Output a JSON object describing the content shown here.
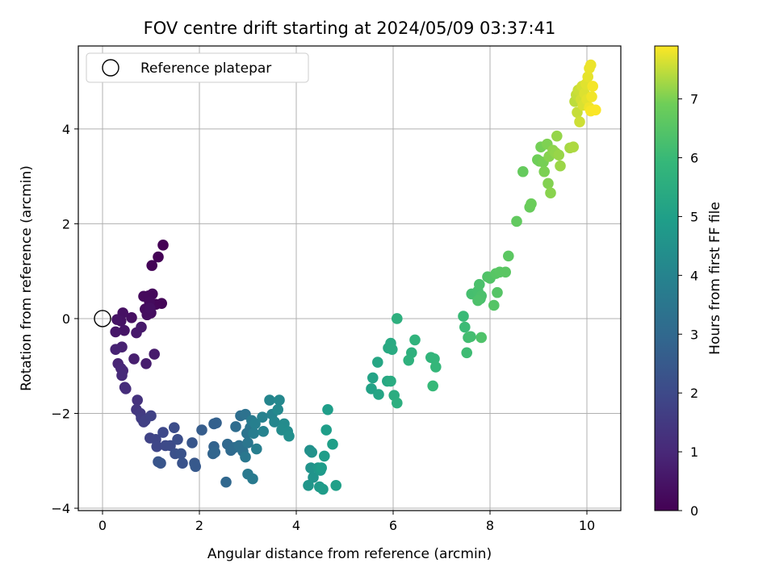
{
  "chart_data": {
    "type": "scatter",
    "title": "FOV centre drift starting at 2024/05/09 03:37:41",
    "xlabel": "Angular distance from reference (arcmin)",
    "ylabel": "Rotation from reference (arcmin)",
    "xlim": [
      -0.5,
      10.7
    ],
    "ylim": [
      -4.05,
      5.75
    ],
    "xticks": [
      0,
      2,
      4,
      6,
      8,
      10
    ],
    "yticks": [
      -4,
      -2,
      0,
      2,
      4
    ],
    "xtick_labels": [
      "0",
      "2",
      "4",
      "6",
      "8",
      "10"
    ],
    "ytick_labels": [
      "−4",
      "−2",
      "0",
      "2",
      "4"
    ],
    "grid": true,
    "legend": {
      "placement": "top-left",
      "entries": [
        {
          "label": "Reference platepar",
          "marker": "hollow-circle"
        }
      ]
    },
    "reference_point": {
      "x": 0,
      "y": 0
    },
    "colorbar": {
      "label": "Hours from first FF file",
      "colormap": "viridis",
      "range": [
        0,
        7.9
      ],
      "ticks": [
        0,
        1,
        2,
        3,
        4,
        5,
        6,
        7
      ],
      "tick_labels": [
        "0",
        "1",
        "2",
        "3",
        "4",
        "5",
        "6",
        "7"
      ]
    },
    "points": [
      {
        "x": 1.25,
        "y": 1.55,
        "c": 0.02
      },
      {
        "x": 1.15,
        "y": 1.3,
        "c": 0.05
      },
      {
        "x": 1.02,
        "y": 1.12,
        "c": 0.08
      },
      {
        "x": 1.22,
        "y": 0.32,
        "c": 0.12
      },
      {
        "x": 1.1,
        "y": 0.3,
        "c": 0.15
      },
      {
        "x": 1.03,
        "y": 0.52,
        "c": 0.18
      },
      {
        "x": 0.95,
        "y": 0.48,
        "c": 0.2
      },
      {
        "x": 0.85,
        "y": 0.47,
        "c": 0.22
      },
      {
        "x": 0.97,
        "y": 0.35,
        "c": 0.25
      },
      {
        "x": 0.88,
        "y": 0.2,
        "c": 0.28
      },
      {
        "x": 1.0,
        "y": 0.12,
        "c": 0.3
      },
      {
        "x": 0.92,
        "y": 0.08,
        "c": 0.33
      },
      {
        "x": 0.98,
        "y": 0.22,
        "c": 0.35
      },
      {
        "x": 0.6,
        "y": 0.02,
        "c": 0.38
      },
      {
        "x": 0.42,
        "y": 0.12,
        "c": 0.4
      },
      {
        "x": 0.38,
        "y": -0.05,
        "c": 0.45
      },
      {
        "x": 0.3,
        "y": -0.02,
        "c": 0.48
      },
      {
        "x": 0.45,
        "y": -0.25,
        "c": 0.5
      },
      {
        "x": 0.27,
        "y": -0.28,
        "c": 0.55
      },
      {
        "x": 0.8,
        "y": -0.18,
        "c": 0.6
      },
      {
        "x": 0.7,
        "y": -0.3,
        "c": 0.62
      },
      {
        "x": 1.07,
        "y": -0.75,
        "c": 0.65
      },
      {
        "x": 0.9,
        "y": -0.95,
        "c": 0.7
      },
      {
        "x": 0.65,
        "y": -0.85,
        "c": 0.75
      },
      {
        "x": 0.4,
        "y": -0.6,
        "c": 0.8
      },
      {
        "x": 0.27,
        "y": -0.65,
        "c": 0.85
      },
      {
        "x": 0.32,
        "y": -0.95,
        "c": 0.9
      },
      {
        "x": 0.38,
        "y": -1.05,
        "c": 0.95
      },
      {
        "x": 0.42,
        "y": -1.1,
        "c": 1.0
      },
      {
        "x": 0.4,
        "y": -1.2,
        "c": 1.05
      },
      {
        "x": 0.46,
        "y": -1.45,
        "c": 1.1
      },
      {
        "x": 0.48,
        "y": -1.48,
        "c": 1.15
      },
      {
        "x": 0.72,
        "y": -1.72,
        "c": 1.3
      },
      {
        "x": 0.7,
        "y": -1.92,
        "c": 1.4
      },
      {
        "x": 0.78,
        "y": -2.0,
        "c": 1.5
      },
      {
        "x": 0.8,
        "y": -2.1,
        "c": 1.6
      },
      {
        "x": 0.85,
        "y": -2.18,
        "c": 1.65
      },
      {
        "x": 0.88,
        "y": -2.15,
        "c": 1.7
      },
      {
        "x": 1.0,
        "y": -2.05,
        "c": 1.75
      },
      {
        "x": 0.98,
        "y": -2.52,
        "c": 1.8
      },
      {
        "x": 1.1,
        "y": -2.55,
        "c": 1.85
      },
      {
        "x": 1.12,
        "y": -2.7,
        "c": 1.9
      },
      {
        "x": 1.25,
        "y": -2.4,
        "c": 1.95
      },
      {
        "x": 1.3,
        "y": -2.68,
        "c": 2.0
      },
      {
        "x": 1.4,
        "y": -2.68,
        "c": 2.05
      },
      {
        "x": 1.48,
        "y": -2.3,
        "c": 2.1
      },
      {
        "x": 1.55,
        "y": -2.55,
        "c": 2.15
      },
      {
        "x": 1.5,
        "y": -2.85,
        "c": 2.2
      },
      {
        "x": 1.62,
        "y": -2.85,
        "c": 2.25
      },
      {
        "x": 1.65,
        "y": -3.05,
        "c": 2.3
      },
      {
        "x": 1.15,
        "y": -3.02,
        "c": 2.32
      },
      {
        "x": 1.2,
        "y": -3.05,
        "c": 2.35
      },
      {
        "x": 1.85,
        "y": -2.62,
        "c": 2.4
      },
      {
        "x": 1.9,
        "y": -3.05,
        "c": 2.45
      },
      {
        "x": 1.92,
        "y": -3.12,
        "c": 2.5
      },
      {
        "x": 2.05,
        "y": -2.35,
        "c": 2.6
      },
      {
        "x": 2.3,
        "y": -2.22,
        "c": 2.7
      },
      {
        "x": 2.35,
        "y": -2.2,
        "c": 2.75
      },
      {
        "x": 2.3,
        "y": -2.7,
        "c": 2.8
      },
      {
        "x": 2.28,
        "y": -2.85,
        "c": 2.85
      },
      {
        "x": 2.32,
        "y": -2.82,
        "c": 2.9
      },
      {
        "x": 2.55,
        "y": -3.45,
        "c": 2.95
      },
      {
        "x": 2.58,
        "y": -2.65,
        "c": 3.0
      },
      {
        "x": 2.65,
        "y": -2.78,
        "c": 3.05
      },
      {
        "x": 2.72,
        "y": -2.72,
        "c": 3.1
      },
      {
        "x": 2.75,
        "y": -2.28,
        "c": 3.15
      },
      {
        "x": 2.85,
        "y": -2.05,
        "c": 3.2
      },
      {
        "x": 2.82,
        "y": -2.68,
        "c": 3.25
      },
      {
        "x": 2.9,
        "y": -2.8,
        "c": 3.3
      },
      {
        "x": 2.95,
        "y": -2.02,
        "c": 3.35
      },
      {
        "x": 2.98,
        "y": -2.42,
        "c": 3.4
      },
      {
        "x": 3.05,
        "y": -2.3,
        "c": 3.45
      },
      {
        "x": 3.0,
        "y": -2.62,
        "c": 3.5
      },
      {
        "x": 2.95,
        "y": -2.92,
        "c": 3.55
      },
      {
        "x": 3.0,
        "y": -3.28,
        "c": 3.6
      },
      {
        "x": 3.1,
        "y": -3.38,
        "c": 3.65
      },
      {
        "x": 3.08,
        "y": -2.15,
        "c": 3.7
      },
      {
        "x": 3.12,
        "y": -2.42,
        "c": 3.75
      },
      {
        "x": 3.18,
        "y": -2.75,
        "c": 3.8
      },
      {
        "x": 3.15,
        "y": -2.22,
        "c": 3.85
      },
      {
        "x": 3.3,
        "y": -2.08,
        "c": 3.9
      },
      {
        "x": 3.32,
        "y": -2.38,
        "c": 3.95
      },
      {
        "x": 3.5,
        "y": -2.02,
        "c": 4.0
      },
      {
        "x": 3.45,
        "y": -1.72,
        "c": 4.05
      },
      {
        "x": 3.55,
        "y": -2.18,
        "c": 4.1
      },
      {
        "x": 3.65,
        "y": -1.72,
        "c": 4.15
      },
      {
        "x": 3.62,
        "y": -1.92,
        "c": 4.2
      },
      {
        "x": 3.75,
        "y": -2.22,
        "c": 4.25
      },
      {
        "x": 3.7,
        "y": -2.35,
        "c": 4.3
      },
      {
        "x": 3.82,
        "y": -2.38,
        "c": 4.35
      },
      {
        "x": 3.85,
        "y": -2.48,
        "c": 4.4
      },
      {
        "x": 4.28,
        "y": -2.78,
        "c": 4.45
      },
      {
        "x": 4.32,
        "y": -2.82,
        "c": 4.5
      },
      {
        "x": 4.3,
        "y": -3.15,
        "c": 4.55
      },
      {
        "x": 4.35,
        "y": -3.35,
        "c": 4.6
      },
      {
        "x": 4.25,
        "y": -3.52,
        "c": 4.65
      },
      {
        "x": 4.45,
        "y": -3.15,
        "c": 4.7
      },
      {
        "x": 4.5,
        "y": -3.2,
        "c": 4.75
      },
      {
        "x": 4.48,
        "y": -3.55,
        "c": 4.8
      },
      {
        "x": 4.55,
        "y": -3.6,
        "c": 4.85
      },
      {
        "x": 4.52,
        "y": -3.15,
        "c": 4.88
      },
      {
        "x": 4.58,
        "y": -2.9,
        "c": 4.9
      },
      {
        "x": 4.62,
        "y": -2.35,
        "c": 4.92
      },
      {
        "x": 4.65,
        "y": -1.92,
        "c": 4.95
      },
      {
        "x": 4.75,
        "y": -2.65,
        "c": 4.97
      },
      {
        "x": 4.82,
        "y": -3.52,
        "c": 5.0
      },
      {
        "x": 5.55,
        "y": -1.48,
        "c": 5.1
      },
      {
        "x": 5.58,
        "y": -1.25,
        "c": 5.15
      },
      {
        "x": 5.7,
        "y": -1.6,
        "c": 5.2
      },
      {
        "x": 5.68,
        "y": -0.92,
        "c": 5.25
      },
      {
        "x": 5.88,
        "y": -1.32,
        "c": 5.3
      },
      {
        "x": 5.9,
        "y": -0.62,
        "c": 5.35
      },
      {
        "x": 5.95,
        "y": -0.52,
        "c": 5.4
      },
      {
        "x": 5.98,
        "y": -0.65,
        "c": 5.42
      },
      {
        "x": 5.95,
        "y": -1.32,
        "c": 5.45
      },
      {
        "x": 6.02,
        "y": -1.62,
        "c": 5.5
      },
      {
        "x": 6.08,
        "y": -1.78,
        "c": 5.55
      },
      {
        "x": 6.08,
        "y": 0.0,
        "c": 5.6
      },
      {
        "x": 6.38,
        "y": -0.72,
        "c": 5.65
      },
      {
        "x": 6.32,
        "y": -0.88,
        "c": 5.7
      },
      {
        "x": 6.45,
        "y": -0.45,
        "c": 5.75
      },
      {
        "x": 6.78,
        "y": -0.82,
        "c": 5.8
      },
      {
        "x": 6.85,
        "y": -0.85,
        "c": 5.85
      },
      {
        "x": 6.88,
        "y": -1.02,
        "c": 5.9
      },
      {
        "x": 6.82,
        "y": -1.42,
        "c": 5.95
      },
      {
        "x": 7.45,
        "y": 0.05,
        "c": 6.0
      },
      {
        "x": 7.48,
        "y": -0.18,
        "c": 6.05
      },
      {
        "x": 7.52,
        "y": -0.72,
        "c": 6.1
      },
      {
        "x": 7.55,
        "y": -0.4,
        "c": 6.15
      },
      {
        "x": 7.6,
        "y": -0.38,
        "c": 6.2
      },
      {
        "x": 7.62,
        "y": 0.52,
        "c": 6.22
      },
      {
        "x": 7.75,
        "y": 0.58,
        "c": 6.25
      },
      {
        "x": 7.8,
        "y": 0.42,
        "c": 6.28
      },
      {
        "x": 7.78,
        "y": 0.72,
        "c": 6.3
      },
      {
        "x": 7.82,
        "y": 0.48,
        "c": 6.32
      },
      {
        "x": 7.75,
        "y": 0.38,
        "c": 6.35
      },
      {
        "x": 7.82,
        "y": -0.4,
        "c": 6.38
      },
      {
        "x": 7.95,
        "y": 0.88,
        "c": 6.4
      },
      {
        "x": 8.0,
        "y": 0.85,
        "c": 6.45
      },
      {
        "x": 8.08,
        "y": 0.28,
        "c": 6.48
      },
      {
        "x": 8.15,
        "y": 0.55,
        "c": 6.5
      },
      {
        "x": 8.12,
        "y": 0.95,
        "c": 6.52
      },
      {
        "x": 8.2,
        "y": 0.98,
        "c": 6.55
      },
      {
        "x": 8.32,
        "y": 0.98,
        "c": 6.58
      },
      {
        "x": 8.38,
        "y": 1.32,
        "c": 6.6
      },
      {
        "x": 8.55,
        "y": 2.05,
        "c": 6.7
      },
      {
        "x": 8.68,
        "y": 3.1,
        "c": 6.75
      },
      {
        "x": 8.82,
        "y": 2.35,
        "c": 6.8
      },
      {
        "x": 8.85,
        "y": 2.42,
        "c": 6.85
      },
      {
        "x": 8.98,
        "y": 3.35,
        "c": 6.9
      },
      {
        "x": 9.02,
        "y": 3.32,
        "c": 6.92
      },
      {
        "x": 9.05,
        "y": 3.62,
        "c": 6.95
      },
      {
        "x": 9.1,
        "y": 3.3,
        "c": 6.97
      },
      {
        "x": 9.12,
        "y": 3.1,
        "c": 7.0
      },
      {
        "x": 9.18,
        "y": 3.68,
        "c": 7.02
      },
      {
        "x": 9.2,
        "y": 2.85,
        "c": 7.05
      },
      {
        "x": 9.22,
        "y": 3.42,
        "c": 7.08
      },
      {
        "x": 9.25,
        "y": 2.65,
        "c": 7.1
      },
      {
        "x": 9.3,
        "y": 3.55,
        "c": 7.12
      },
      {
        "x": 9.35,
        "y": 3.5,
        "c": 7.15
      },
      {
        "x": 9.38,
        "y": 3.85,
        "c": 7.18
      },
      {
        "x": 9.42,
        "y": 3.45,
        "c": 7.2
      },
      {
        "x": 9.45,
        "y": 3.22,
        "c": 7.22
      },
      {
        "x": 9.65,
        "y": 3.6,
        "c": 7.3
      },
      {
        "x": 9.72,
        "y": 3.62,
        "c": 7.35
      },
      {
        "x": 9.75,
        "y": 4.58,
        "c": 7.45
      },
      {
        "x": 9.78,
        "y": 4.72,
        "c": 7.5
      },
      {
        "x": 9.8,
        "y": 4.35,
        "c": 7.52
      },
      {
        "x": 9.82,
        "y": 4.82,
        "c": 7.55
      },
      {
        "x": 9.85,
        "y": 4.15,
        "c": 7.57
      },
      {
        "x": 9.88,
        "y": 4.62,
        "c": 7.6
      },
      {
        "x": 9.9,
        "y": 4.9,
        "c": 7.62
      },
      {
        "x": 9.92,
        "y": 4.5,
        "c": 7.65
      },
      {
        "x": 9.95,
        "y": 4.75,
        "c": 7.67
      },
      {
        "x": 9.98,
        "y": 4.95,
        "c": 7.7
      },
      {
        "x": 10.0,
        "y": 4.62,
        "c": 7.72
      },
      {
        "x": 10.02,
        "y": 5.1,
        "c": 7.74
      },
      {
        "x": 10.05,
        "y": 5.28,
        "c": 7.76
      },
      {
        "x": 10.08,
        "y": 5.35,
        "c": 7.78
      },
      {
        "x": 10.05,
        "y": 4.45,
        "c": 7.8
      },
      {
        "x": 10.1,
        "y": 4.68,
        "c": 7.82
      },
      {
        "x": 10.12,
        "y": 4.9,
        "c": 7.84
      },
      {
        "x": 10.08,
        "y": 4.38,
        "c": 7.86
      },
      {
        "x": 10.18,
        "y": 4.4,
        "c": 7.88
      }
    ]
  }
}
